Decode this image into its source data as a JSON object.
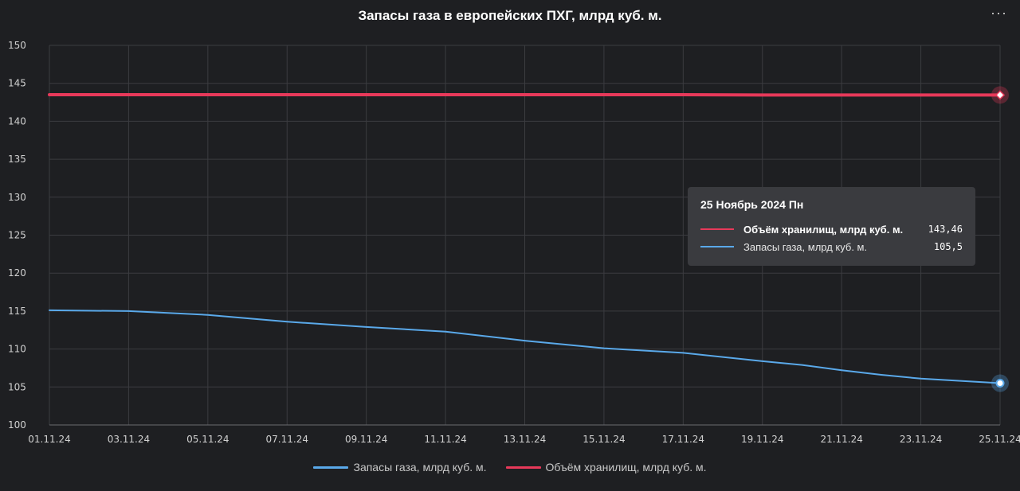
{
  "chart_data": {
    "type": "line",
    "title": "Запасы газа в европейских ПХГ, млрд куб. м.",
    "ylim": [
      100,
      150
    ],
    "y_ticks": [
      "100",
      "105",
      "110",
      "115",
      "120",
      "125",
      "130",
      "135",
      "140",
      "145",
      "150"
    ],
    "x_tick_labels": [
      "01.11.24",
      "03.11.24",
      "05.11.24",
      "07.11.24",
      "09.11.24",
      "11.11.24",
      "13.11.24",
      "15.11.24",
      "17.11.24",
      "19.11.24",
      "21.11.24",
      "23.11.24",
      "25.11.24"
    ],
    "x_tick_days": [
      1,
      3,
      5,
      7,
      9,
      11,
      13,
      15,
      17,
      19,
      21,
      23,
      25
    ],
    "x": [
      1,
      3,
      5,
      7,
      9,
      11,
      13,
      15,
      17,
      19,
      20,
      21,
      22,
      23,
      25
    ],
    "grid": true,
    "legend": "bottom",
    "series": [
      {
        "name": "Запасы газа, млрд куб. м.",
        "color": "#5aa9ea",
        "values": [
          115.1,
          115.0,
          114.5,
          113.6,
          112.9,
          112.3,
          111.1,
          110.1,
          109.5,
          108.4,
          107.9,
          107.2,
          106.6,
          106.1,
          105.5
        ]
      },
      {
        "name": "Объём хранилищ, млрд куб. м.",
        "color": "#e8395a",
        "values": [
          143.5,
          143.5,
          143.5,
          143.5,
          143.5,
          143.5,
          143.5,
          143.5,
          143.5,
          143.46,
          143.46,
          143.46,
          143.46,
          143.46,
          143.46
        ]
      }
    ],
    "tooltip": {
      "date": "25 Ноябрь 2024 Пн",
      "rows": [
        {
          "name": "Объём хранилищ, млрд куб. м.",
          "value": "143,46",
          "color": "#e8395a",
          "bold": true
        },
        {
          "name": "Запасы газа, млрд куб. м.",
          "value": "105,5",
          "color": "#5aa9ea",
          "bold": false
        }
      ]
    }
  },
  "menu_label": "···"
}
